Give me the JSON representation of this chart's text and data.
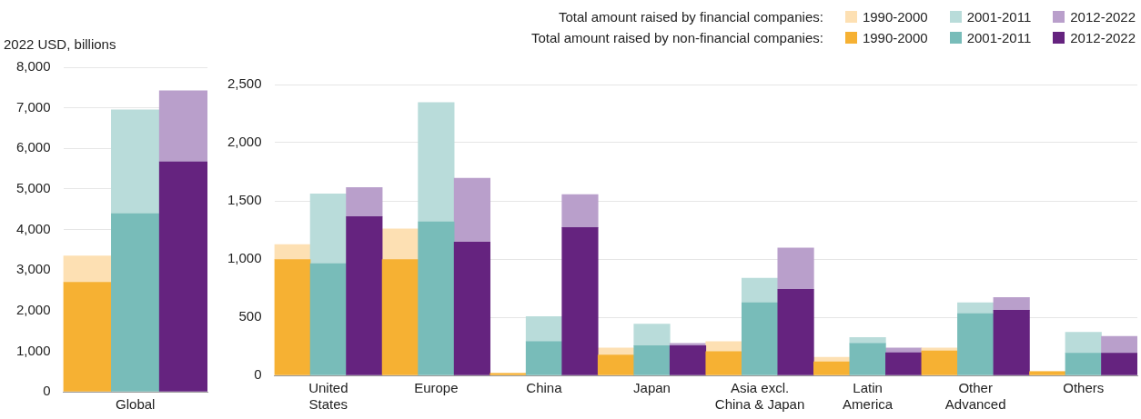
{
  "chart_data": [
    {
      "type": "bar",
      "ylabel": "2022 USD, billions",
      "categories": [
        null,
        "Global",
        null
      ],
      "ylim": [
        0,
        8000
      ],
      "yticks": [
        {
          "value": 0,
          "label": "0"
        },
        {
          "value": 1000,
          "label": "1,000"
        },
        {
          "value": 2000,
          "label": "2,000"
        },
        {
          "value": 3000,
          "label": "3,000"
        },
        {
          "value": 4000,
          "label": "4,000"
        },
        {
          "value": 5000,
          "label": "5,000"
        },
        {
          "value": 6000,
          "label": "6,000"
        },
        {
          "value": 7000,
          "label": "7,000"
        },
        {
          "value": 8000,
          "label": "8,000"
        }
      ],
      "grid": "y",
      "stacked": true,
      "series": [
        {
          "colors": [
            "#f6b133",
            "#78bcb9",
            "#65237f"
          ],
          "values": [
            2700,
            4390,
            5670
          ]
        },
        {
          "colors": [
            "#fde0b3",
            "#b9dcda",
            "#b99fcb"
          ],
          "values": [
            650,
            2560,
            1750
          ]
        }
      ]
    },
    {
      "type": "bar",
      "categories": [
        null,
        "United States",
        null,
        null,
        "Europe",
        null,
        null,
        "China",
        null,
        null,
        "Japan",
        null,
        null,
        "Asia excl. China & Japan",
        null,
        null,
        "Latin America",
        null,
        null,
        "Other Advanced",
        null,
        null,
        "Others",
        null
      ],
      "ylim": [
        0,
        2500
      ],
      "yticks": [
        {
          "value": 0,
          "label": "0"
        },
        {
          "value": 500,
          "label": "500"
        },
        {
          "value": 1000,
          "label": "1,000"
        },
        {
          "value": 1500,
          "label": "1,500"
        },
        {
          "value": 2000,
          "label": "2,000"
        },
        {
          "value": 2500,
          "label": "2,500"
        }
      ],
      "grid": "y",
      "legend": "top right",
      "stacked": true,
      "annotations": [
        "1990-2000",
        "2001-2011",
        "2012-2022"
      ],
      "series": [
        {
          "name": "Total amount raised by non-financial companies:",
          "colors": [
            "#f6b133",
            "#78bcb9",
            "#65237f",
            "#f6b133",
            "#78bcb9",
            "#65237f",
            "#f6b133",
            "#78bcb9",
            "#65237f",
            "#f6b133",
            "#78bcb9",
            "#65237f",
            "#f6b133",
            "#78bcb9",
            "#65237f",
            "#f6b133",
            "#78bcb9",
            "#65237f",
            "#f6b133",
            "#78bcb9",
            "#65237f",
            "#f6b133",
            "#78bcb9",
            "#65237f"
          ],
          "values": [
            995,
            960,
            1365,
            995,
            1320,
            1145,
            16,
            290,
            1270,
            176,
            255,
            255,
            205,
            625,
            740,
            116,
            275,
            195,
            210,
            530,
            560,
            32,
            190,
            190
          ]
        },
        {
          "name": "Total amount raised by financial companies:",
          "colors": [
            "#fde0b3",
            "#b9dcda",
            "#b99fcb",
            "#fde0b3",
            "#b9dcda",
            "#b99fcb",
            "#fde0b3",
            "#b9dcda",
            "#b99fcb",
            "#fde0b3",
            "#b9dcda",
            "#b99fcb",
            "#fde0b3",
            "#b9dcda",
            "#b99fcb",
            "#fde0b3",
            "#b9dcda",
            "#b99fcb",
            "#fde0b3",
            "#b9dcda",
            "#b99fcb",
            "#fde0b3",
            "#b9dcda",
            "#b99fcb"
          ],
          "values": [
            130,
            600,
            250,
            265,
            1025,
            550,
            0,
            215,
            285,
            60,
            185,
            20,
            85,
            210,
            355,
            40,
            50,
            40,
            25,
            95,
            110,
            0,
            180,
            145
          ]
        }
      ]
    }
  ]
}
